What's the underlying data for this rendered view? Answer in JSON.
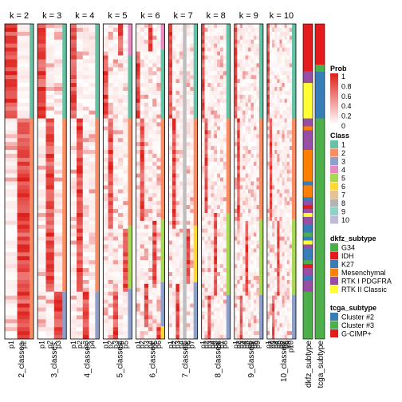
{
  "chart_data": {
    "type": "heatmap",
    "panels": [
      {
        "title": "k = 2",
        "xlabel": "2_classes",
        "columns": [
          "p1",
          "p2"
        ]
      },
      {
        "title": "k = 3",
        "xlabel": "3_classes",
        "columns": [
          "p1",
          "p2",
          "p3"
        ]
      },
      {
        "title": "k = 4",
        "xlabel": "4_classes",
        "columns": [
          "p1",
          "p2",
          "p3",
          "p4"
        ]
      },
      {
        "title": "k = 5",
        "xlabel": "5_classes",
        "columns": [
          "p1",
          "p2",
          "p3",
          "p4",
          "p5"
        ]
      },
      {
        "title": "k = 6",
        "xlabel": "6_classes",
        "columns": [
          "p1",
          "p2",
          "p3",
          "p4",
          "p5",
          "p6"
        ]
      },
      {
        "title": "k = 7",
        "xlabel": "7_classes",
        "columns": [
          "p1",
          "p2",
          "p3",
          "p4",
          "p5",
          "p6",
          "p7"
        ]
      },
      {
        "title": "k = 8",
        "xlabel": "8_classes",
        "columns": [
          "p1",
          "p2",
          "p3",
          "p4",
          "p5",
          "p6",
          "p7",
          "p8"
        ]
      },
      {
        "title": "k = 9",
        "xlabel": "9_classes",
        "columns": [
          "p1",
          "p2",
          "p3",
          "p4",
          "p5",
          "p6",
          "p7",
          "p8",
          "p9"
        ]
      },
      {
        "title": "k = 10",
        "xlabel": "10_classes",
        "columns": [
          "p1",
          "p2",
          "p3",
          "p4",
          "p5",
          "p6",
          "p7",
          "p8",
          "p9",
          "p10"
        ]
      }
    ],
    "annotation_columns": [
      "dkfz_subtype",
      "tcga_subtype"
    ],
    "legends": {
      "prob": {
        "title": "Prob",
        "ticks": [
          "1",
          "0.8",
          "0.6",
          "0.4",
          "0.2",
          "0"
        ]
      },
      "class": {
        "title": "Class",
        "entries": [
          {
            "label": "1",
            "color": "#66C2A5"
          },
          {
            "label": "2",
            "color": "#FC8D62"
          },
          {
            "label": "3",
            "color": "#8DA0CB"
          },
          {
            "label": "4",
            "color": "#E78AC3"
          },
          {
            "label": "5",
            "color": "#A6D854"
          },
          {
            "label": "6",
            "color": "#FFD92F"
          },
          {
            "label": "7",
            "color": "#E5C494"
          },
          {
            "label": "8",
            "color": "#B3B3B3"
          },
          {
            "label": "9",
            "color": "#8DD3C7"
          },
          {
            "label": "10",
            "color": "#BEBADA"
          }
        ]
      },
      "dkfz": {
        "title": "dkfz_subtype",
        "entries": [
          {
            "label": "G34",
            "color": "#4DAF4A"
          },
          {
            "label": "IDH",
            "color": "#E41A1C"
          },
          {
            "label": "K27",
            "color": "#377EB8"
          },
          {
            "label": "Mesenchymal",
            "color": "#FF7F00"
          },
          {
            "label": "RTK I PDGFRA",
            "color": "#984EA3"
          },
          {
            "label": "RTK II Classic",
            "color": "#FFFF33"
          }
        ]
      },
      "tcga": {
        "title": "tcga_subtype",
        "entries": [
          {
            "label": "Cluster #2",
            "color": "#377EB8"
          },
          {
            "label": "Cluster #3",
            "color": "#4DAF4A"
          },
          {
            "label": "G-CIMP+",
            "color": "#E41A1C"
          }
        ]
      }
    },
    "grid": false,
    "legend_position": "right"
  }
}
